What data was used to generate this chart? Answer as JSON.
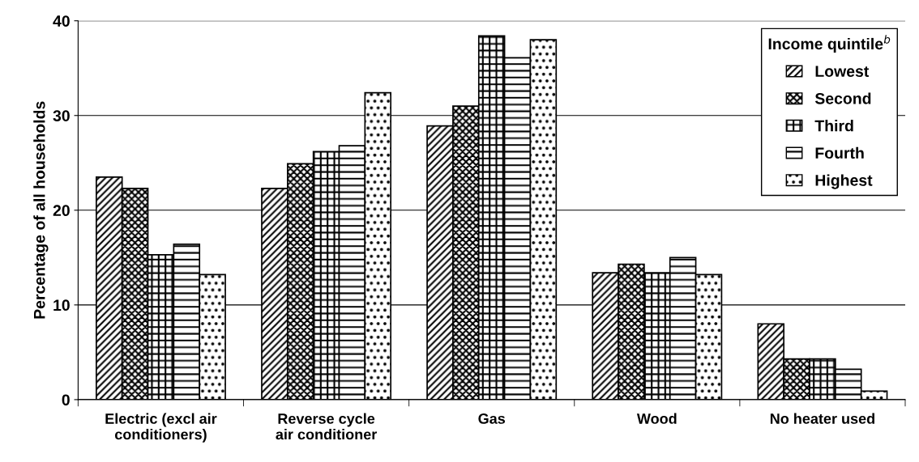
{
  "chart_data": {
    "type": "bar",
    "ylabel": "Percentage of all households",
    "legend_title": "Income quintile$^{b}$",
    "categories": [
      "Electric (excl air\nconditioners)",
      "Reverse cycle\nair conditioner",
      "Gas",
      "Wood",
      "No heater used"
    ],
    "series": [
      {
        "name": "Lowest",
        "color": "#000000",
        "values": [
          23.5,
          22.3,
          28.9,
          13.4,
          8.0
        ]
      },
      {
        "name": "Second",
        "color": "#000000",
        "values": [
          22.3,
          24.9,
          31.0,
          14.3,
          4.3
        ]
      },
      {
        "name": "Third",
        "color": "#000000",
        "values": [
          15.3,
          26.2,
          38.4,
          13.4,
          4.3
        ]
      },
      {
        "name": "Fourth",
        "color": "#000000",
        "values": [
          16.4,
          26.8,
          36.1,
          15.0,
          3.2
        ]
      },
      {
        "name": "Highest",
        "color": "#000000",
        "values": [
          13.2,
          32.4,
          38.0,
          13.2,
          0.9
        ]
      }
    ],
    "ylim": [
      0,
      40
    ],
    "yticks": [
      0,
      10,
      20,
      30,
      40
    ],
    "grid": "y",
    "legend": "top right"
  }
}
